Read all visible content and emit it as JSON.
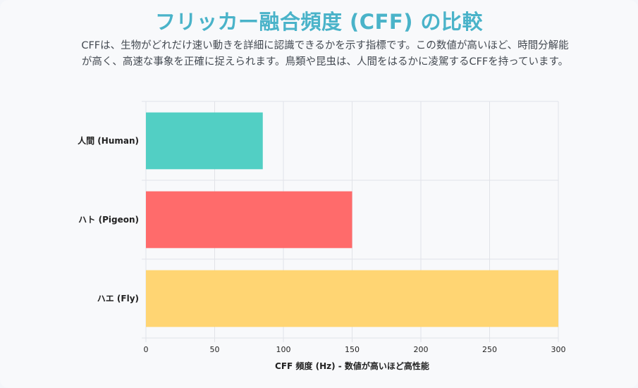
{
  "header": {
    "title": "フリッカー融合頻度 (CFF) の比較",
    "description_line1": "CFFは、生物がどれだけ速い動きを詳細に認識できるかを示す指標です。この数値が高いほど、時間分解能",
    "description_line2": "が高く、高速な事象を正確に捉えられます。鳥類や昆虫は、人間をはるかに凌駕するCFFを持っています。"
  },
  "chart_data": {
    "type": "bar",
    "orientation": "horizontal",
    "categories": [
      "人間 (Human)",
      "ハト (Pigeon)",
      "ハエ (Fly)"
    ],
    "values": [
      85,
      150,
      300
    ],
    "colors": [
      "#52cfc4",
      "#ff6b6b",
      "#ffd573"
    ],
    "xlabel": "CFF 頻度 (Hz) - 数値が高いほど高性能",
    "xlim": [
      0,
      300
    ],
    "xticks": [
      0,
      50,
      100,
      150,
      200,
      250,
      300
    ],
    "grid": true,
    "legend": "none"
  }
}
